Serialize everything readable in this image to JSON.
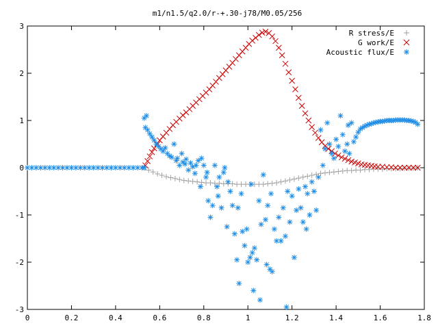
{
  "chart_data": {
    "type": "scatter",
    "title": "m1/n1.5/q2.0/r-+.30-j78/M0.05/256",
    "xlabel": "",
    "ylabel": "",
    "xlim": [
      0,
      1.8
    ],
    "ylim": [
      -3,
      3
    ],
    "xticks": [
      "0",
      "0.2",
      "0.4",
      "0.6",
      "0.8",
      "1",
      "1.2",
      "1.4",
      "1.6",
      "1.8"
    ],
    "yticks": [
      "3",
      "2",
      "1",
      "0",
      "-1",
      "-2",
      "-3"
    ],
    "grid": false,
    "legend_position": "top-right",
    "series": [
      {
        "name": "R stress/E",
        "marker": "plus",
        "color": "#a0a0a0",
        "points": [
          [
            0.535,
            0.0
          ],
          [
            0.55,
            -0.05
          ],
          [
            0.57,
            -0.09
          ],
          [
            0.59,
            -0.13
          ],
          [
            0.61,
            -0.16
          ],
          [
            0.63,
            -0.19
          ],
          [
            0.65,
            -0.21
          ],
          [
            0.67,
            -0.23
          ],
          [
            0.69,
            -0.25
          ],
          [
            0.71,
            -0.27
          ],
          [
            0.73,
            -0.28
          ],
          [
            0.75,
            -0.29
          ],
          [
            0.77,
            -0.3
          ],
          [
            0.79,
            -0.31
          ],
          [
            0.81,
            -0.32
          ],
          [
            0.83,
            -0.32
          ],
          [
            0.85,
            -0.33
          ],
          [
            0.87,
            -0.33
          ],
          [
            0.89,
            -0.34
          ],
          [
            0.91,
            -0.34
          ],
          [
            0.93,
            -0.34
          ],
          [
            0.95,
            -0.35
          ],
          [
            0.97,
            -0.35
          ],
          [
            0.99,
            -0.35
          ],
          [
            1.01,
            -0.35
          ],
          [
            1.03,
            -0.35
          ],
          [
            1.05,
            -0.35
          ],
          [
            1.07,
            -0.35
          ],
          [
            1.09,
            -0.34
          ],
          [
            1.11,
            -0.33
          ],
          [
            1.13,
            -0.32
          ],
          [
            1.15,
            -0.3
          ],
          [
            1.17,
            -0.28
          ],
          [
            1.19,
            -0.26
          ],
          [
            1.21,
            -0.24
          ],
          [
            1.23,
            -0.22
          ],
          [
            1.25,
            -0.2
          ],
          [
            1.27,
            -0.18
          ],
          [
            1.29,
            -0.16
          ],
          [
            1.31,
            -0.14
          ],
          [
            1.33,
            -0.12
          ],
          [
            1.35,
            -0.11
          ],
          [
            1.37,
            -0.1
          ],
          [
            1.39,
            -0.09
          ],
          [
            1.41,
            -0.08
          ],
          [
            1.43,
            -0.07
          ],
          [
            1.45,
            -0.06
          ],
          [
            1.47,
            -0.06
          ],
          [
            1.49,
            -0.05
          ],
          [
            1.51,
            -0.05
          ],
          [
            1.53,
            -0.04
          ],
          [
            1.55,
            -0.04
          ],
          [
            1.57,
            -0.03
          ],
          [
            1.59,
            -0.03
          ],
          [
            1.61,
            -0.03
          ],
          [
            1.63,
            -0.02
          ],
          [
            1.65,
            -0.02
          ],
          [
            1.67,
            -0.02
          ],
          [
            1.69,
            -0.02
          ],
          [
            1.71,
            -0.01
          ],
          [
            1.73,
            -0.01
          ],
          [
            1.75,
            -0.01
          ],
          [
            1.77,
            0.0
          ]
        ]
      },
      {
        "name": "G work/E",
        "marker": "cross",
        "color": "#cc0000",
        "points": [
          [
            0.535,
            0.05
          ],
          [
            0.545,
            0.14
          ],
          [
            0.555,
            0.24
          ],
          [
            0.565,
            0.33
          ],
          [
            0.575,
            0.41
          ],
          [
            0.59,
            0.5
          ],
          [
            0.6,
            0.58
          ],
          [
            0.615,
            0.66
          ],
          [
            0.63,
            0.74
          ],
          [
            0.645,
            0.82
          ],
          [
            0.66,
            0.9
          ],
          [
            0.675,
            0.97
          ],
          [
            0.69,
            1.04
          ],
          [
            0.705,
            1.11
          ],
          [
            0.72,
            1.17
          ],
          [
            0.735,
            1.24
          ],
          [
            0.75,
            1.31
          ],
          [
            0.765,
            1.38
          ],
          [
            0.78,
            1.45
          ],
          [
            0.795,
            1.52
          ],
          [
            0.81,
            1.59
          ],
          [
            0.825,
            1.66
          ],
          [
            0.84,
            1.74
          ],
          [
            0.855,
            1.82
          ],
          [
            0.87,
            1.9
          ],
          [
            0.885,
            1.98
          ],
          [
            0.9,
            2.06
          ],
          [
            0.915,
            2.14
          ],
          [
            0.93,
            2.22
          ],
          [
            0.945,
            2.3
          ],
          [
            0.96,
            2.38
          ],
          [
            0.975,
            2.46
          ],
          [
            0.99,
            2.54
          ],
          [
            1.005,
            2.62
          ],
          [
            1.02,
            2.69
          ],
          [
            1.035,
            2.75
          ],
          [
            1.05,
            2.81
          ],
          [
            1.065,
            2.86
          ],
          [
            1.08,
            2.88
          ],
          [
            1.095,
            2.85
          ],
          [
            1.11,
            2.78
          ],
          [
            1.125,
            2.68
          ],
          [
            1.14,
            2.54
          ],
          [
            1.155,
            2.38
          ],
          [
            1.17,
            2.2
          ],
          [
            1.185,
            2.02
          ],
          [
            1.2,
            1.84
          ],
          [
            1.215,
            1.66
          ],
          [
            1.23,
            1.48
          ],
          [
            1.245,
            1.31
          ],
          [
            1.26,
            1.15
          ],
          [
            1.275,
            1.0
          ],
          [
            1.29,
            0.86
          ],
          [
            1.305,
            0.74
          ],
          [
            1.32,
            0.63
          ],
          [
            1.335,
            0.54
          ],
          [
            1.35,
            0.46
          ],
          [
            1.365,
            0.4
          ],
          [
            1.38,
            0.35
          ],
          [
            1.395,
            0.3
          ],
          [
            1.41,
            0.26
          ],
          [
            1.425,
            0.22
          ],
          [
            1.44,
            0.19
          ],
          [
            1.455,
            0.16
          ],
          [
            1.47,
            0.13
          ],
          [
            1.485,
            0.11
          ],
          [
            1.5,
            0.09
          ],
          [
            1.515,
            0.07
          ],
          [
            1.53,
            0.06
          ],
          [
            1.545,
            0.05
          ],
          [
            1.56,
            0.04
          ],
          [
            1.575,
            0.03
          ],
          [
            1.59,
            0.02
          ],
          [
            1.61,
            0.02
          ],
          [
            1.63,
            0.01
          ],
          [
            1.65,
            0.01
          ],
          [
            1.67,
            0.0
          ],
          [
            1.69,
            0.0
          ],
          [
            1.71,
            0.0
          ],
          [
            1.73,
            0.0
          ],
          [
            1.75,
            0.0
          ],
          [
            1.77,
            0.0
          ]
        ]
      },
      {
        "name": "Acoustic flux/E",
        "marker": "star",
        "color": "#1e8ce6",
        "points": [
          [
            0.0,
            0.0
          ],
          [
            0.02,
            0.0
          ],
          [
            0.04,
            0.0
          ],
          [
            0.06,
            0.0
          ],
          [
            0.08,
            0.0
          ],
          [
            0.1,
            0.0
          ],
          [
            0.12,
            0.0
          ],
          [
            0.14,
            0.0
          ],
          [
            0.16,
            0.0
          ],
          [
            0.18,
            0.0
          ],
          [
            0.2,
            0.0
          ],
          [
            0.22,
            0.0
          ],
          [
            0.24,
            0.0
          ],
          [
            0.26,
            0.0
          ],
          [
            0.28,
            0.0
          ],
          [
            0.3,
            0.0
          ],
          [
            0.32,
            0.0
          ],
          [
            0.34,
            0.0
          ],
          [
            0.36,
            0.0
          ],
          [
            0.38,
            0.0
          ],
          [
            0.4,
            0.0
          ],
          [
            0.42,
            0.0
          ],
          [
            0.44,
            0.0
          ],
          [
            0.46,
            0.0
          ],
          [
            0.48,
            0.0
          ],
          [
            0.5,
            0.0
          ],
          [
            0.52,
            0.0
          ],
          [
            0.53,
            0.0
          ],
          [
            0.53,
            1.05
          ],
          [
            0.54,
            1.1
          ],
          [
            0.535,
            0.85
          ],
          [
            0.545,
            0.8
          ],
          [
            0.555,
            0.72
          ],
          [
            0.565,
            0.65
          ],
          [
            0.575,
            0.58
          ],
          [
            0.585,
            0.5
          ],
          [
            0.595,
            0.45
          ],
          [
            0.605,
            0.4
          ],
          [
            0.615,
            0.35
          ],
          [
            0.625,
            0.42
          ],
          [
            0.635,
            0.3
          ],
          [
            0.645,
            0.25
          ],
          [
            0.655,
            0.22
          ],
          [
            0.665,
            0.5
          ],
          [
            0.675,
            0.15
          ],
          [
            0.68,
            0.2
          ],
          [
            0.69,
            0.05
          ],
          [
            0.7,
            0.3
          ],
          [
            0.705,
            0.12
          ],
          [
            0.715,
            0.08
          ],
          [
            0.72,
            0.18
          ],
          [
            0.73,
            -0.05
          ],
          [
            0.74,
            0.1
          ],
          [
            0.75,
            0.02
          ],
          [
            0.76,
            -0.12
          ],
          [
            0.765,
            0.05
          ],
          [
            0.775,
            0.15
          ],
          [
            0.785,
            -0.4
          ],
          [
            0.79,
            0.2
          ],
          [
            0.8,
            0.05
          ],
          [
            0.81,
            -0.2
          ],
          [
            0.815,
            -0.1
          ],
          [
            0.82,
            -0.7
          ],
          [
            0.83,
            -1.05
          ],
          [
            0.84,
            -0.8
          ],
          [
            0.85,
            0.05
          ],
          [
            0.86,
            -0.4
          ],
          [
            0.865,
            -0.6
          ],
          [
            0.87,
            -0.2
          ],
          [
            0.88,
            -0.85
          ],
          [
            0.89,
            -0.1
          ],
          [
            0.895,
            0.0
          ],
          [
            0.905,
            -1.25
          ],
          [
            0.91,
            -0.3
          ],
          [
            0.92,
            -0.5
          ],
          [
            0.93,
            -0.8
          ],
          [
            0.94,
            -1.4
          ],
          [
            0.95,
            -1.95
          ],
          [
            0.955,
            -0.85
          ],
          [
            0.96,
            -2.45
          ],
          [
            0.97,
            -0.55
          ],
          [
            0.975,
            -1.35
          ],
          [
            0.985,
            -1.65
          ],
          [
            0.995,
            -1.3
          ],
          [
            1.0,
            -2.0
          ],
          [
            1.01,
            -1.9
          ],
          [
            1.015,
            -0.35
          ],
          [
            1.02,
            -1.8
          ],
          [
            1.025,
            -2.6
          ],
          [
            1.03,
            -1.7
          ],
          [
            1.04,
            -1.95
          ],
          [
            1.05,
            -0.7
          ],
          [
            1.055,
            -2.8
          ],
          [
            1.06,
            -1.2
          ],
          [
            1.07,
            -0.15
          ],
          [
            1.08,
            -1.1
          ],
          [
            1.085,
            -2.05
          ],
          [
            1.09,
            -0.8
          ],
          [
            1.1,
            -2.15
          ],
          [
            1.105,
            -0.55
          ],
          [
            1.11,
            -2.2
          ],
          [
            1.12,
            -1.3
          ],
          [
            1.13,
            -1.55
          ],
          [
            1.14,
            -1.05
          ],
          [
            1.15,
            -1.55
          ],
          [
            1.16,
            -0.85
          ],
          [
            1.17,
            -1.45
          ],
          [
            1.175,
            -2.95
          ],
          [
            1.18,
            -0.5
          ],
          [
            1.19,
            -1.15
          ],
          [
            1.2,
            -0.6
          ],
          [
            1.21,
            -1.9
          ],
          [
            1.22,
            -0.9
          ],
          [
            1.23,
            -0.45
          ],
          [
            1.24,
            -0.85
          ],
          [
            1.25,
            -1.15
          ],
          [
            1.26,
            -0.4
          ],
          [
            1.265,
            -1.3
          ],
          [
            1.27,
            -0.55
          ],
          [
            1.28,
            -1.0
          ],
          [
            1.29,
            -0.3
          ],
          [
            1.3,
            -0.5
          ],
          [
            1.31,
            -0.9
          ],
          [
            1.32,
            -0.2
          ],
          [
            1.33,
            0.8
          ],
          [
            1.34,
            0.05
          ],
          [
            1.35,
            0.4
          ],
          [
            1.36,
            0.95
          ],
          [
            1.37,
            0.5
          ],
          [
            1.38,
            0.3
          ],
          [
            1.39,
            0.2
          ],
          [
            1.4,
            0.6
          ],
          [
            1.41,
            0.45
          ],
          [
            1.42,
            1.1
          ],
          [
            1.43,
            0.7
          ],
          [
            1.44,
            0.35
          ],
          [
            1.45,
            0.5
          ],
          [
            1.455,
            0.9
          ],
          [
            1.46,
            0.3
          ],
          [
            1.47,
            0.95
          ],
          [
            1.48,
            0.55
          ],
          [
            1.49,
            0.65
          ],
          [
            1.5,
            0.75
          ],
          [
            1.51,
            0.82
          ],
          [
            1.52,
            0.85
          ],
          [
            1.53,
            0.88
          ],
          [
            1.54,
            0.9
          ],
          [
            1.55,
            0.92
          ],
          [
            1.56,
            0.93
          ],
          [
            1.57,
            0.95
          ],
          [
            1.58,
            0.96
          ],
          [
            1.59,
            0.97
          ],
          [
            1.6,
            0.98
          ],
          [
            1.61,
            0.98
          ],
          [
            1.62,
            0.99
          ],
          [
            1.63,
            1.0
          ],
          [
            1.64,
            1.0
          ],
          [
            1.65,
            1.0
          ],
          [
            1.66,
            1.0
          ],
          [
            1.67,
            1.01
          ],
          [
            1.68,
            1.01
          ],
          [
            1.69,
            1.01
          ],
          [
            1.7,
            1.01
          ],
          [
            1.71,
            1.01
          ],
          [
            1.72,
            1.0
          ],
          [
            1.73,
            1.0
          ],
          [
            1.74,
            0.99
          ],
          [
            1.75,
            0.98
          ],
          [
            1.76,
            0.96
          ],
          [
            1.77,
            0.92
          ]
        ]
      }
    ]
  }
}
